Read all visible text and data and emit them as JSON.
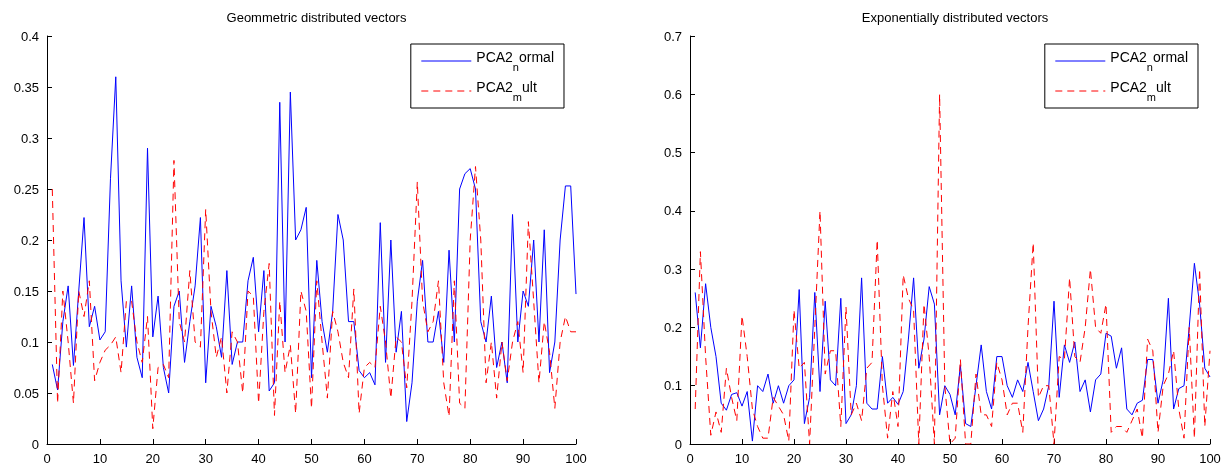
{
  "chart_data": [
    {
      "type": "line",
      "title": "Geommetric distributed vectors",
      "x": [
        1,
        2,
        3,
        4,
        5,
        6,
        7,
        8,
        9,
        10,
        11,
        12,
        13,
        14,
        15,
        16,
        17,
        18,
        19,
        20,
        21,
        22,
        23,
        24,
        25,
        26,
        27,
        28,
        29,
        30,
        31,
        32,
        33,
        34,
        35,
        36,
        37,
        38,
        39,
        40,
        41,
        42,
        43,
        44,
        45,
        46,
        47,
        48,
        49,
        50,
        51,
        52,
        53,
        54,
        55,
        56,
        57,
        58,
        59,
        60,
        61,
        62,
        63,
        64,
        65,
        66,
        67,
        68,
        69,
        70,
        71,
        72,
        73,
        74,
        75,
        76,
        77,
        78,
        79,
        80,
        81,
        82,
        83,
        84,
        85,
        86,
        87,
        88,
        89,
        90,
        91,
        92,
        93,
        94,
        95,
        96,
        97,
        98,
        99,
        100
      ],
      "series": [
        {
          "name": "PCA2$_{n}$ormal",
          "color": "#0000ff",
          "line_style": "solid",
          "values": [
            0.078,
            0.053,
            0.12,
            0.155,
            0.077,
            0.15,
            0.222,
            0.115,
            0.135,
            0.102,
            0.11,
            0.26,
            0.36,
            0.16,
            0.095,
            0.155,
            0.085,
            0.065,
            0.29,
            0.105,
            0.145,
            0.075,
            0.05,
            0.135,
            0.15,
            0.08,
            0.12,
            0.155,
            0.222,
            0.06,
            0.135,
            0.115,
            0.085,
            0.17,
            0.078,
            0.1,
            0.1,
            0.16,
            0.183,
            0.11,
            0.17,
            0.052,
            0.06,
            0.335,
            0.1,
            0.345,
            0.2,
            0.21,
            0.232,
            0.065,
            0.18,
            0.12,
            0.09,
            0.13,
            0.225,
            0.2,
            0.12,
            0.12,
            0.072,
            0.065,
            0.07,
            0.058,
            0.217,
            0.08,
            0.2,
            0.09,
            0.13,
            0.022,
            0.06,
            0.14,
            0.18,
            0.1,
            0.1,
            0.13,
            0.08,
            0.19,
            0.1,
            0.25,
            0.265,
            0.27,
            0.25,
            0.12,
            0.1,
            0.145,
            0.075,
            0.1,
            0.06,
            0.225,
            0.1,
            0.15,
            0.135,
            0.2,
            0.1,
            0.21,
            0.07,
            0.1,
            0.2,
            0.253,
            0.253,
            0.147
          ]
        },
        {
          "name": "PCA2$_{m}$ult",
          "color": "#ff0000",
          "line_style": "dashed",
          "values": [
            0.25,
            0.04,
            0.15,
            0.1,
            0.04,
            0.15,
            0.125,
            0.16,
            0.062,
            0.08,
            0.092,
            0.097,
            0.105,
            0.07,
            0.14,
            0.14,
            0.1,
            0.08,
            0.125,
            0.015,
            0.075,
            0.078,
            0.065,
            0.278,
            0.12,
            0.1,
            0.17,
            0.1,
            0.095,
            0.23,
            0.13,
            0.085,
            0.105,
            0.05,
            0.11,
            0.1,
            0.05,
            0.15,
            0.145,
            0.04,
            0.13,
            0.177,
            0.028,
            0.14,
            0.07,
            0.097,
            0.03,
            0.15,
            0.13,
            0.035,
            0.16,
            0.1,
            0.045,
            0.13,
            0.11,
            0.08,
            0.065,
            0.152,
            0.03,
            0.075,
            0.08,
            0.075,
            0.135,
            0.1,
            0.045,
            0.105,
            0.1,
            0.055,
            0.14,
            0.257,
            0.14,
            0.11,
            0.12,
            0.16,
            0.06,
            0.027,
            0.16,
            0.04,
            0.035,
            0.2,
            0.272,
            0.2,
            0.06,
            0.1,
            0.045,
            0.1,
            0.062,
            0.1,
            0.12,
            0.07,
            0.218,
            0.14,
            0.06,
            0.12,
            0.09,
            0.035,
            0.1,
            0.125,
            0.11,
            0.11
          ]
        }
      ],
      "xlim": [
        0,
        100
      ],
      "xticks": [
        0,
        10,
        20,
        30,
        40,
        50,
        60,
        70,
        80,
        90,
        100
      ],
      "ylim": [
        0,
        0.4
      ],
      "yticks": [
        0,
        0.05,
        0.1,
        0.15,
        0.2,
        0.25,
        0.3,
        0.35,
        0.4
      ],
      "grid": false,
      "legend": "top right",
      "marker": "none"
    },
    {
      "type": "line",
      "title": "Exponentially distributed vectors",
      "x": [
        1,
        2,
        3,
        4,
        5,
        6,
        7,
        8,
        9,
        10,
        11,
        12,
        13,
        14,
        15,
        16,
        17,
        18,
        19,
        20,
        21,
        22,
        23,
        24,
        25,
        26,
        27,
        28,
        29,
        30,
        31,
        32,
        33,
        34,
        35,
        36,
        37,
        38,
        39,
        40,
        41,
        42,
        43,
        44,
        45,
        46,
        47,
        48,
        49,
        50,
        51,
        52,
        53,
        54,
        55,
        56,
        57,
        58,
        59,
        60,
        61,
        62,
        63,
        64,
        65,
        66,
        67,
        68,
        69,
        70,
        71,
        72,
        73,
        74,
        75,
        76,
        77,
        78,
        79,
        80,
        81,
        82,
        83,
        84,
        85,
        86,
        87,
        88,
        89,
        90,
        91,
        92,
        93,
        94,
        95,
        96,
        97,
        98,
        99,
        100
      ],
      "series": [
        {
          "name": "PCA2$_{n}$ormal",
          "color": "#0000ff",
          "line_style": "solid",
          "values": [
            0.26,
            0.165,
            0.275,
            0.2,
            0.15,
            0.07,
            0.058,
            0.085,
            0.088,
            0.065,
            0.09,
            0.005,
            0.1,
            0.09,
            0.12,
            0.07,
            0.1,
            0.07,
            0.1,
            0.11,
            0.265,
            0.035,
            0.08,
            0.26,
            0.09,
            0.245,
            0.11,
            0.1,
            0.25,
            0.035,
            0.05,
            0.1,
            0.285,
            0.07,
            0.06,
            0.06,
            0.15,
            0.07,
            0.08,
            0.068,
            0.09,
            0.18,
            0.285,
            0.13,
            0.18,
            0.27,
            0.24,
            0.05,
            0.1,
            0.085,
            0.05,
            0.135,
            0.035,
            0.03,
            0.1,
            0.17,
            0.09,
            0.06,
            0.15,
            0.15,
            0.1,
            0.08,
            0.11,
            0.09,
            0.14,
            0.09,
            0.04,
            0.06,
            0.1,
            0.245,
            0.08,
            0.17,
            0.14,
            0.175,
            0.09,
            0.11,
            0.055,
            0.11,
            0.12,
            0.19,
            0.185,
            0.13,
            0.165,
            0.06,
            0.05,
            0.07,
            0.075,
            0.145,
            0.145,
            0.07,
            0.11,
            0.25,
            0.06,
            0.095,
            0.1,
            0.2,
            0.31,
            0.24,
            0.13,
            0.115
          ]
        },
        {
          "name": "PCA2$_{m}$ult",
          "color": "#ff0000",
          "line_style": "dashed",
          "values": [
            0.06,
            0.33,
            0.15,
            0.015,
            0.055,
            0.02,
            0.13,
            0.08,
            0.04,
            0.22,
            0.15,
            0.06,
            0.03,
            0.01,
            0.01,
            0.08,
            0.065,
            0.05,
            0.005,
            0.23,
            0.13,
            0.14,
            0,
            0.2,
            0.4,
            0.12,
            0.16,
            0.16,
            0.03,
            0.235,
            0.05,
            0.07,
            0.04,
            0.13,
            0.14,
            0.35,
            0.1,
            0.01,
            0.09,
            0.03,
            0.29,
            0.25,
            0.23,
            0,
            0.24,
            0.15,
            0,
            0.6,
            0.1,
            0,
            0.01,
            0.145,
            0,
            0,
            0.12,
            0.05,
            0.05,
            0.03,
            0.14,
            0.11,
            0.05,
            0.07,
            0.07,
            0.02,
            0.2,
            0.345,
            0.08,
            0.1,
            0.1,
            0,
            0.15,
            0.145,
            0.285,
            0.15,
            0.14,
            0.2,
            0.3,
            0.2,
            0.19,
            0.24,
            0.02,
            0.03,
            0.03,
            0.02,
            0.04,
            0.06,
            0.01,
            0.18,
            0.16,
            0.02,
            0.1,
            0.12,
            0.16,
            0.06,
            0.01,
            0.2,
            0.01,
            0.3,
            0.03,
            0.16
          ]
        }
      ],
      "xlim": [
        0,
        100
      ],
      "xticks": [
        0,
        10,
        20,
        30,
        40,
        50,
        60,
        70,
        80,
        90,
        100
      ],
      "ylim": [
        0,
        0.7
      ],
      "yticks": [
        0,
        0.1,
        0.2,
        0.3,
        0.4,
        0.5,
        0.6,
        0.7
      ],
      "grid": false,
      "legend": "top right",
      "marker": "none"
    }
  ]
}
